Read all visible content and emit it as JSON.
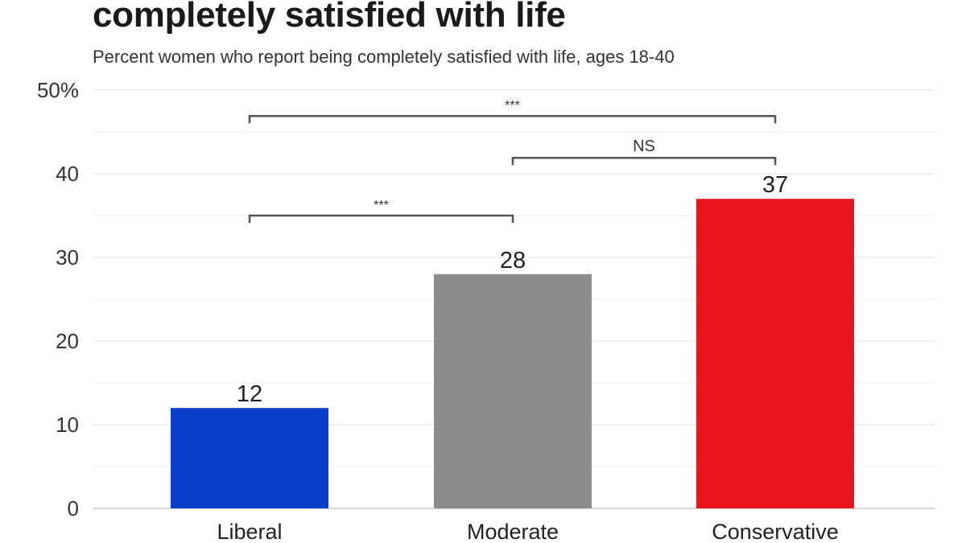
{
  "chart_data": {
    "type": "bar",
    "title": "completely satisfied with life",
    "subtitle": "Percent women who report being completely satisfied with life, ages 18-40",
    "xlabel": "",
    "ylabel": "",
    "ylim": [
      0,
      50
    ],
    "y_ticks": [
      0,
      10,
      20,
      30,
      40,
      50
    ],
    "y_tick_labels": [
      "0",
      "10",
      "20",
      "30",
      "40",
      "50%"
    ],
    "grid": true,
    "categories": [
      "Liberal",
      "Moderate",
      "Conservative"
    ],
    "values": [
      12,
      28,
      37
    ],
    "value_labels": [
      "12",
      "28",
      "37"
    ],
    "colors": [
      "#0a3fc9",
      "#8c8c8c",
      "#e8141e"
    ],
    "significance": [
      {
        "from": "Liberal",
        "to": "Conservative",
        "label": "***",
        "y": 46.9
      },
      {
        "from": "Moderate",
        "to": "Conservative",
        "label": "NS",
        "y": 41.9
      },
      {
        "from": "Liberal",
        "to": "Moderate",
        "label": "***",
        "y": 35
      }
    ]
  }
}
